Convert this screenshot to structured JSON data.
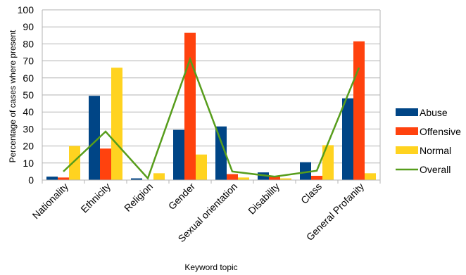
{
  "chart_data": {
    "type": "bar",
    "title": "",
    "xlabel": "Keyword topic",
    "ylabel": "Percentage of cases where present",
    "ylim": [
      0,
      100
    ],
    "yticks": [
      0,
      10,
      20,
      30,
      40,
      50,
      60,
      70,
      80,
      90,
      100
    ],
    "grid": true,
    "legend_position": "right",
    "categories": [
      "Nationality",
      "Ethnicity",
      "Religion",
      "Gender",
      "Sexual orientation",
      "Disability",
      "Class",
      "General Profanity"
    ],
    "series": [
      {
        "name": "Abuse",
        "type": "bar",
        "color": "#004586",
        "values": [
          2,
          49.5,
          1,
          29.5,
          31.5,
          4.5,
          10.5,
          48
        ]
      },
      {
        "name": "Offensive",
        "type": "bar",
        "color": "#ff420e",
        "values": [
          1.5,
          18.5,
          0,
          86.5,
          3.5,
          2,
          2.5,
          81.5
        ]
      },
      {
        "name": "Normal",
        "type": "bar",
        "color": "#ffd320",
        "values": [
          20,
          66,
          4,
          15,
          1.5,
          1,
          20.5,
          4
        ]
      },
      {
        "name": "Overall",
        "type": "line",
        "color": "#579d1c",
        "values": [
          5,
          28.5,
          1,
          71,
          5,
          2,
          5.5,
          66
        ]
      }
    ]
  }
}
